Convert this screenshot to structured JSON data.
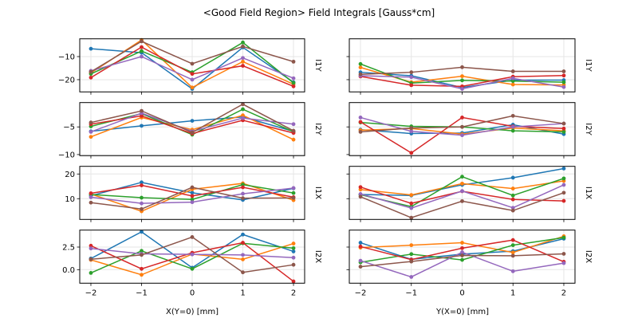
{
  "chart_data": {
    "type": "line",
    "title": "<Good Field Region> Field Integrals [Gauss*cm]",
    "series_colors": [
      "#1f77b4",
      "#ff7f0e",
      "#2ca02c",
      "#d62728",
      "#9467bd",
      "#8c564b"
    ],
    "grid": true,
    "columns": [
      {
        "xlabel": "X(Y=0) [mm]",
        "x": [
          -2,
          -1,
          0,
          1,
          2
        ],
        "xticks": [
          "−2",
          "−1",
          "0",
          "1",
          "2"
        ]
      },
      {
        "xlabel": "Y(X=0) [mm]",
        "x": [
          -2,
          -1,
          0,
          1,
          2
        ],
        "xticks": [
          "−2",
          "−1",
          "0",
          "1",
          "2"
        ]
      }
    ],
    "rows": [
      {
        "ylabel": "I1Y",
        "ylim": [
          -25.3,
          -2.3
        ],
        "yticks": [
          {
            "value": -10,
            "label": "−10"
          },
          {
            "value": -20,
            "label": "−20"
          }
        ],
        "panels": [
          {
            "series": [
              [
                -6.6,
                -8.3,
                -24.0,
                -6.0,
                -21.1
              ],
              [
                -17.1,
                -2.8,
                -23.4,
                -12.2,
                -22.0
              ],
              [
                -17.5,
                -7.6,
                -16.8,
                -3.9,
                -21.4
              ],
              [
                -19.1,
                -5.9,
                -17.5,
                -14.0,
                -22.9
              ],
              [
                -16.2,
                -10.0,
                -20.0,
                -10.6,
                -19.4
              ],
              [
                -16.6,
                -3.4,
                -13.1,
                -5.6,
                -12.2
              ]
            ]
          },
          {
            "series": [
              [
                -16.8,
                -18.3,
                -23.4,
                -20.2,
                -20.2
              ],
              [
                -14.7,
                -21.1,
                -18.5,
                -22.1,
                -22.3
              ],
              [
                -13.2,
                -21.5,
                -20.3,
                -20.6,
                -21.1
              ],
              [
                -18.6,
                -22.4,
                -22.9,
                -18.7,
                -18.2
              ],
              [
                -18.3,
                -18.9,
                -24.0,
                -19.4,
                -23.2
              ],
              [
                -17.7,
                -16.8,
                -14.6,
                -16.4,
                -16.4
              ]
            ]
          }
        ]
      },
      {
        "ylabel": "I2Y",
        "ylim": [
          -10.2,
          -0.6
        ],
        "yticks": [
          {
            "value": -5,
            "label": "−5"
          },
          {
            "value": -10,
            "label": "−10"
          }
        ],
        "panels": [
          {
            "series": [
              [
                -5.8,
                -4.8,
                -3.9,
                -3.2,
                -5.8
              ],
              [
                -6.8,
                -3.3,
                -5.5,
                -2.9,
                -7.3
              ],
              [
                -4.9,
                -2.6,
                -6.4,
                -1.8,
                -5.9
              ],
              [
                -4.5,
                -3.0,
                -6.2,
                -3.8,
                -6.1
              ],
              [
                -5.9,
                -2.5,
                -5.8,
                -3.4,
                -4.5
              ],
              [
                -4.2,
                -2.1,
                -6.0,
                -0.9,
                -5.7
              ]
            ]
          },
          {
            "series": [
              [
                -5.5,
                -6.2,
                -6.1,
                -4.6,
                -6.3
              ],
              [
                -5.6,
                -5.3,
                -6.3,
                -5.2,
                -5.7
              ],
              [
                -4.2,
                -4.9,
                -5.0,
                -5.7,
                -5.9
              ],
              [
                -4.1,
                -9.7,
                -3.3,
                -4.9,
                -5.3
              ],
              [
                -3.3,
                -5.8,
                -6.5,
                -5.0,
                -4.4
              ],
              [
                -5.9,
                -5.2,
                -5.0,
                -3.0,
                -4.4
              ]
            ]
          }
        ]
      },
      {
        "ylabel": "I1X",
        "ylim": [
          1.6,
          23.1
        ],
        "yticks": [
          {
            "value": 20,
            "label": "20"
          },
          {
            "value": 10,
            "label": "10"
          }
        ],
        "panels": [
          {
            "series": [
              [
                11.2,
                16.6,
                12.4,
                9.5,
                14.2
              ],
              [
                11.9,
                4.9,
                13.8,
                16.2,
                9.4
              ],
              [
                11.7,
                10.4,
                9.7,
                15.7,
                12.3
              ],
              [
                12.2,
                15.4,
                11.1,
                14.6,
                10.6
              ],
              [
                10.6,
                8.1,
                8.6,
                12.0,
                14.3
              ],
              [
                8.4,
                5.8,
                14.6,
                10.2,
                10.3
              ]
            ]
          },
          {
            "series": [
              [
                11.7,
                11.3,
                15.6,
                18.5,
                22.2
              ],
              [
                13.7,
                11.5,
                16.1,
                14.1,
                17.2
              ],
              [
                11.6,
                6.8,
                18.9,
                11.3,
                18.2
              ],
              [
                14.7,
                8.1,
                13.0,
                9.7,
                9.1
              ],
              [
                11.9,
                6.2,
                13.1,
                6.3,
                15.6
              ],
              [
                10.8,
                2.3,
                9.0,
                5.2,
                12.4
              ]
            ]
          }
        ]
      },
      {
        "ylabel": "I2X",
        "ylim": [
          -1.5,
          4.38
        ],
        "yticks": [
          {
            "value": 2.5,
            "label": "2.5"
          },
          {
            "value": 0,
            "label": "0.0"
          }
        ],
        "panels": [
          {
            "series": [
              [
                1.23,
                4.19,
                0.21,
                3.89,
                2.02
              ],
              [
                1.08,
                -0.57,
                1.72,
                1.14,
                2.89
              ],
              [
                -0.36,
                2.08,
                0.09,
                2.92,
                2.38
              ],
              [
                2.65,
                0.09,
                1.87,
                2.98,
                -1.3
              ],
              [
                2.35,
                1.75,
                1.69,
                1.63,
                1.33
              ],
              [
                1.15,
                1.63,
                3.61,
                -0.3,
                0.54
              ]
            ]
          },
          {
            "series": [
              [
                2.98,
                1.14,
                1.72,
                2.05,
                3.43
              ],
              [
                2.44,
                2.71,
                2.98,
                1.9,
                3.7
              ],
              [
                0.81,
                1.72,
                1.08,
                2.71,
                3.55
              ],
              [
                2.56,
                1.11,
                2.38,
                3.28,
                0.87
              ],
              [
                0.99,
                -0.81,
                1.93,
                -0.18,
                0.72
              ],
              [
                0.33,
                0.9,
                1.57,
                1.54,
                1.75
              ]
            ]
          }
        ]
      }
    ]
  }
}
